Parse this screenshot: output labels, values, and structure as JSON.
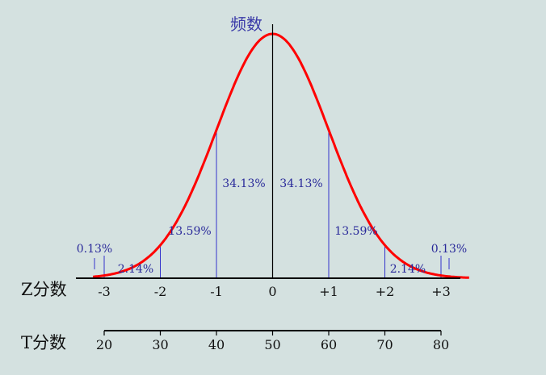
{
  "chart_data": {
    "type": "line",
    "title": "",
    "y_label": "频数",
    "z_label": "Z分数",
    "t_label": "T分数",
    "z_ticks": [
      "-3",
      "-2",
      "-1",
      "0",
      "+1",
      "+2",
      "+3"
    ],
    "t_ticks": [
      "20",
      "30",
      "40",
      "50",
      "60",
      "70",
      "80"
    ],
    "xlim": [
      -3.2,
      3.5
    ],
    "curve": {
      "name": "",
      "color": "#ff0000",
      "mean": 0,
      "sd": 1
    },
    "region_boundaries": [
      -3,
      -2,
      -1,
      1,
      2,
      3
    ],
    "region_percentages": [
      {
        "label": "0.13%",
        "from": "-inf",
        "to": -3
      },
      {
        "label": "2.14%",
        "from": -3,
        "to": -2
      },
      {
        "label": "13.59%",
        "from": -2,
        "to": -1
      },
      {
        "label": "34.13%",
        "from": -1,
        "to": 0
      },
      {
        "label": "34.13%",
        "from": 0,
        "to": 1
      },
      {
        "label": "13.59%",
        "from": 1,
        "to": 2
      },
      {
        "label": "2.14%",
        "from": 2,
        "to": 3
      },
      {
        "label": "0.13%",
        "from": 3,
        "to": "+inf"
      }
    ],
    "colors": {
      "curve": "#ff0000",
      "divider": "#3333cc",
      "text": "#111111",
      "axis_title": "#3a3aa8",
      "pct": "#2a2a9a"
    }
  }
}
